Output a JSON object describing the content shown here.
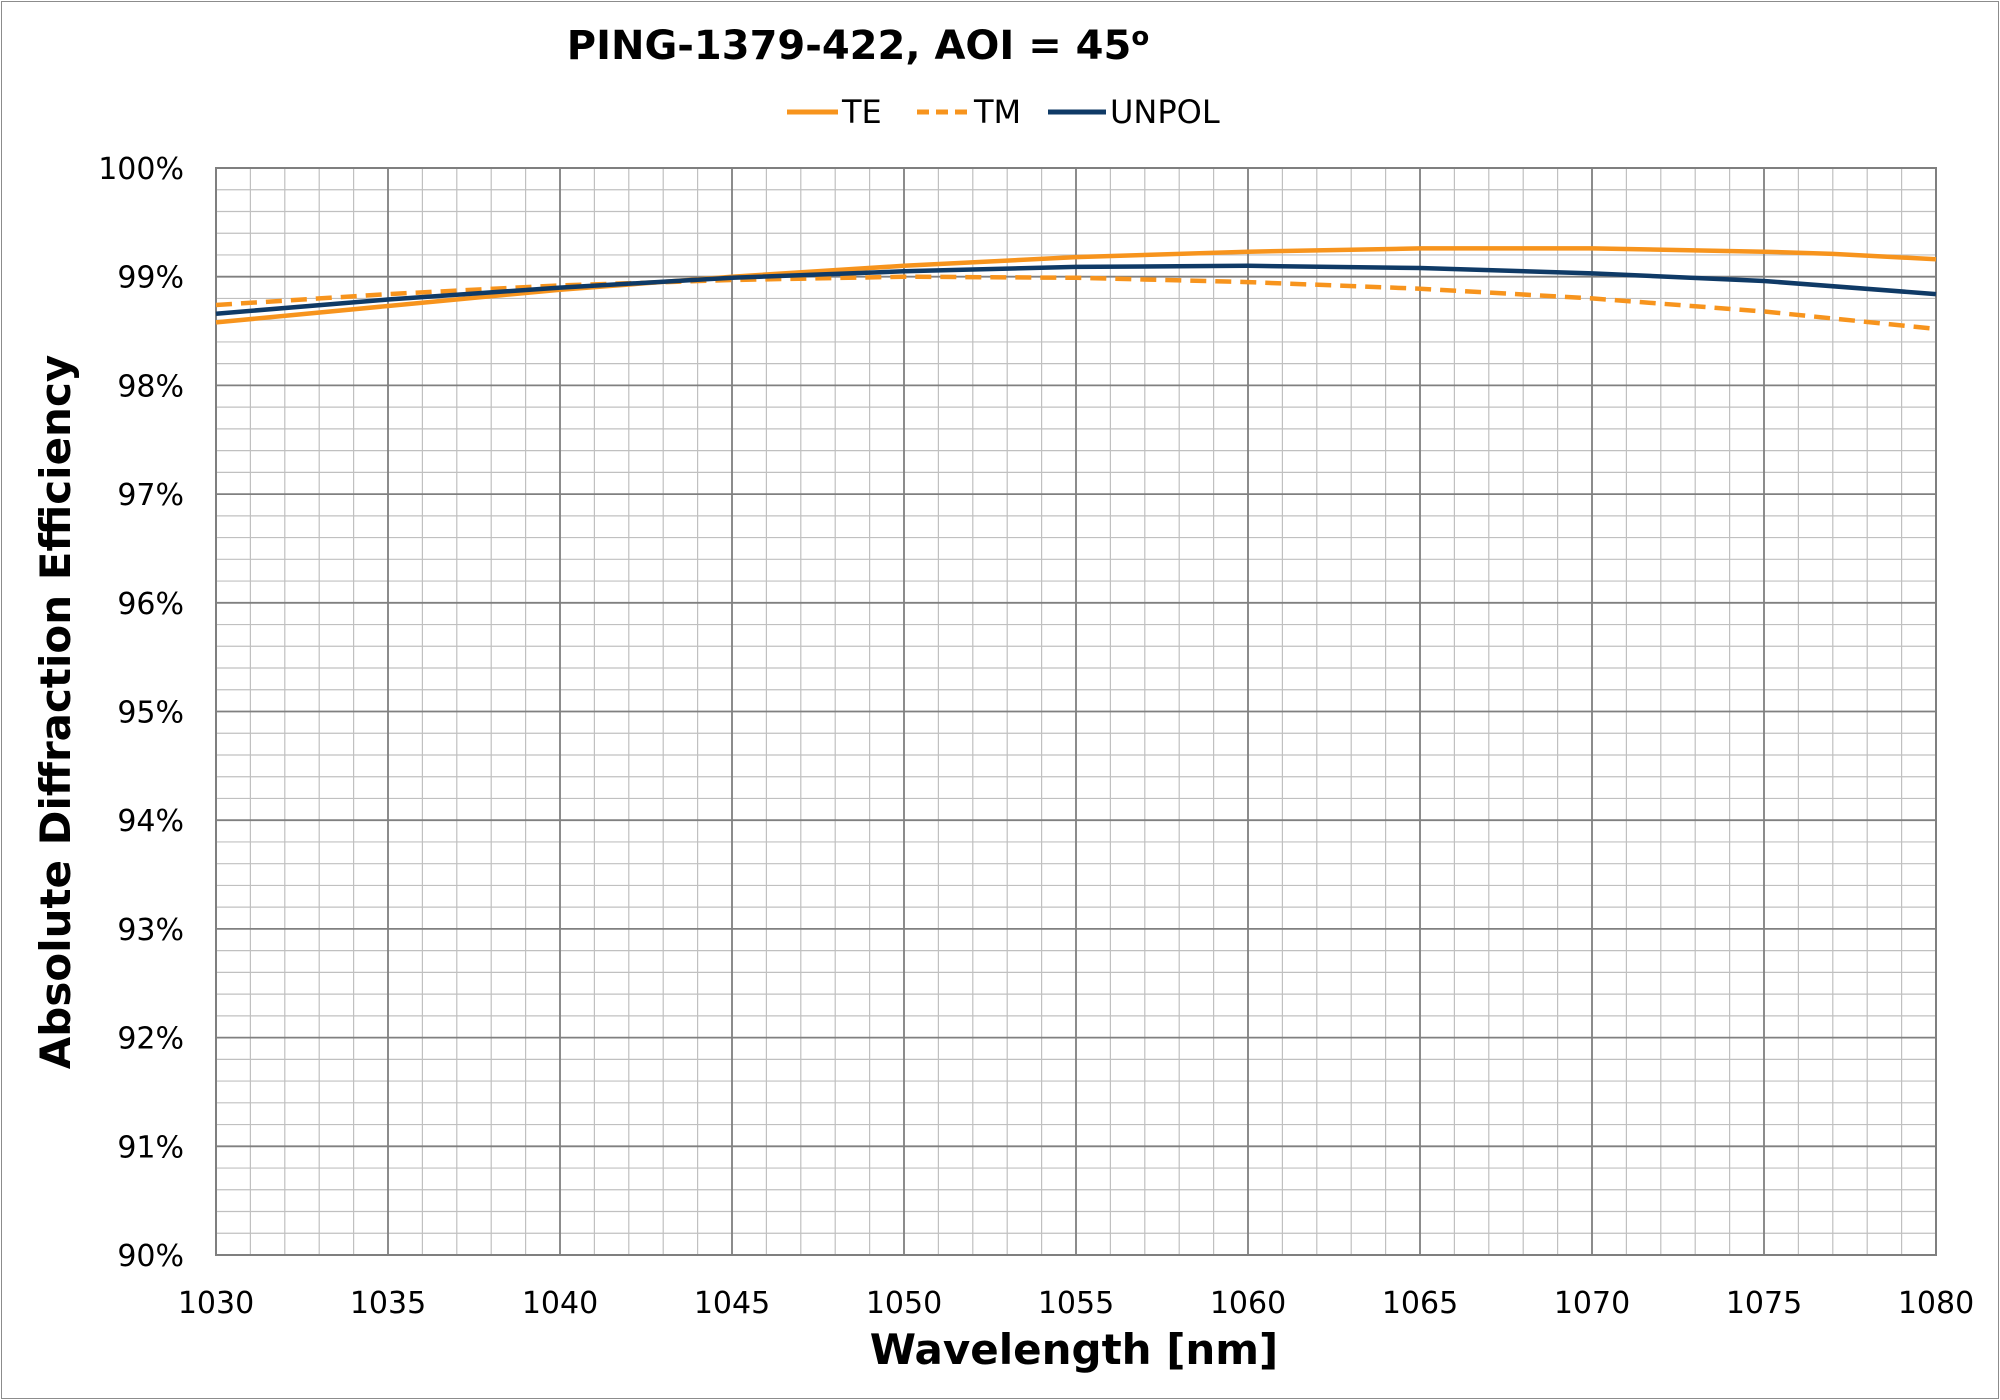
{
  "chart_data": {
    "type": "line",
    "title": "PING-1379-422, AOI = 45",
    "title_superscript": "o",
    "xlabel": "Wavelength [nm]",
    "ylabel": "Absolute Diffraction Efficiency",
    "xlim": [
      1030,
      1080
    ],
    "ylim": [
      90,
      100
    ],
    "x_ticks": [
      1030,
      1035,
      1040,
      1045,
      1050,
      1055,
      1060,
      1065,
      1070,
      1075,
      1080
    ],
    "x_tick_labels": [
      "1030",
      "1035",
      "1040",
      "1045",
      "1050",
      "1055",
      "1060",
      "1065",
      "1070",
      "1075",
      "1080"
    ],
    "y_ticks": [
      90,
      91,
      92,
      93,
      94,
      95,
      96,
      97,
      98,
      99,
      100
    ],
    "y_tick_labels": [
      "90%",
      "91%",
      "92%",
      "93%",
      "94%",
      "95%",
      "96%",
      "97%",
      "98%",
      "99%",
      "100%"
    ],
    "minor_grid": {
      "x_step": 1,
      "y_step": 0.2
    },
    "grid": true,
    "legend_position": "top-center",
    "series": [
      {
        "name": "TE",
        "color": "#f7941d",
        "style": "solid",
        "x": [
          1030,
          1035,
          1040,
          1045,
          1050,
          1055,
          1060,
          1065,
          1070,
          1075,
          1077,
          1080
        ],
        "y": [
          98.58,
          98.73,
          98.88,
          99.0,
          99.1,
          99.18,
          99.23,
          99.26,
          99.26,
          99.23,
          99.21,
          99.16
        ]
      },
      {
        "name": "TM",
        "color": "#f7941d",
        "style": "dashed",
        "x": [
          1030,
          1035,
          1040,
          1045,
          1050,
          1055,
          1060,
          1065,
          1070,
          1075,
          1080
        ],
        "y": [
          98.74,
          98.84,
          98.92,
          98.97,
          99.0,
          98.99,
          98.95,
          98.89,
          98.8,
          98.68,
          98.52
        ]
      },
      {
        "name": "UNPOL",
        "color": "#0f3a66",
        "style": "solid",
        "x": [
          1030,
          1035,
          1040,
          1045,
          1050,
          1055,
          1060,
          1065,
          1070,
          1075,
          1080
        ],
        "y": [
          98.66,
          98.79,
          98.9,
          98.99,
          99.05,
          99.09,
          99.1,
          99.08,
          99.03,
          98.96,
          98.84
        ]
      }
    ]
  }
}
